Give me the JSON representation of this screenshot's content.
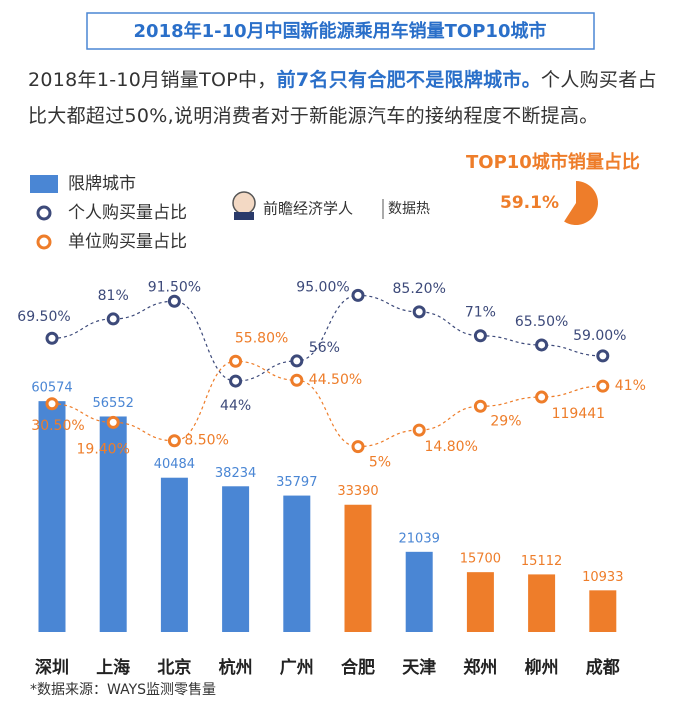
{
  "chart_data": {
    "type": "bar_line",
    "title": "2018年1-10月中国新能源乘用车销量TOP10城市",
    "description": {
      "lead": "2018年1-10月销量TOP中，",
      "highlight": "前7名只有合肥不是限牌城市。",
      "rest": "个人购买者占比大都超过50%,说明消费者对于新能源汽车的接纳程度不断提高。"
    },
    "categories": [
      "深圳",
      "上海",
      "北京",
      "杭州",
      "广州",
      "合肥",
      "天津",
      "郑州",
      "柳州",
      "成都"
    ],
    "ylim": [
      0,
      90000
    ],
    "y2lim": [
      0,
      100
    ],
    "series": [
      {
        "name": "限牌城市",
        "color": "#4a86d4",
        "colors": [
          "#4a86d4",
          "#4a86d4",
          "#4a86d4",
          "#4a86d4",
          "#4a86d4",
          "#ee7d2a",
          "#4a86d4",
          "#ee7d2a",
          "#ee7d2a",
          "#ee7d2a"
        ],
        "values": [
          60574,
          56552,
          40484,
          38234,
          35797,
          33390,
          21039,
          15700,
          15112,
          10933
        ]
      },
      {
        "name": "个人购买量占比",
        "color": "#3d4a7a",
        "axis": "y2",
        "values": [
          69.5,
          81,
          91.5,
          44,
          56,
          95,
          85.2,
          71,
          65.5,
          59
        ],
        "value_labels": [
          "69.50%",
          "81%",
          "91.50%",
          "44%",
          "56%",
          "95.00%",
          "85.20%",
          "71%",
          "65.50%",
          "59.00%"
        ]
      },
      {
        "name": "单位购买量占比",
        "color": "#ee7d2a",
        "axis": "y2",
        "values": [
          30.5,
          19.4,
          8.5,
          55.8,
          44.5,
          5,
          14.8,
          29,
          34.5,
          41
        ],
        "value_labels": [
          "30.50%",
          "19.40%",
          "8.50%",
          "55.80%",
          "44.50%",
          "5%",
          "14.80%",
          "29%",
          null,
          "41%"
        ]
      }
    ],
    "annotations": [
      "119441"
    ],
    "brand": "前瞻经济学人",
    "brand_tag": "数据热",
    "inset": {
      "title": "TOP10城市销量占比",
      "values": [
        59.1
      ],
      "value_labels": [
        "59.1%"
      ],
      "color": "#ee7d2a"
    },
    "source": "*数据来源：WAYS监测零售量"
  }
}
